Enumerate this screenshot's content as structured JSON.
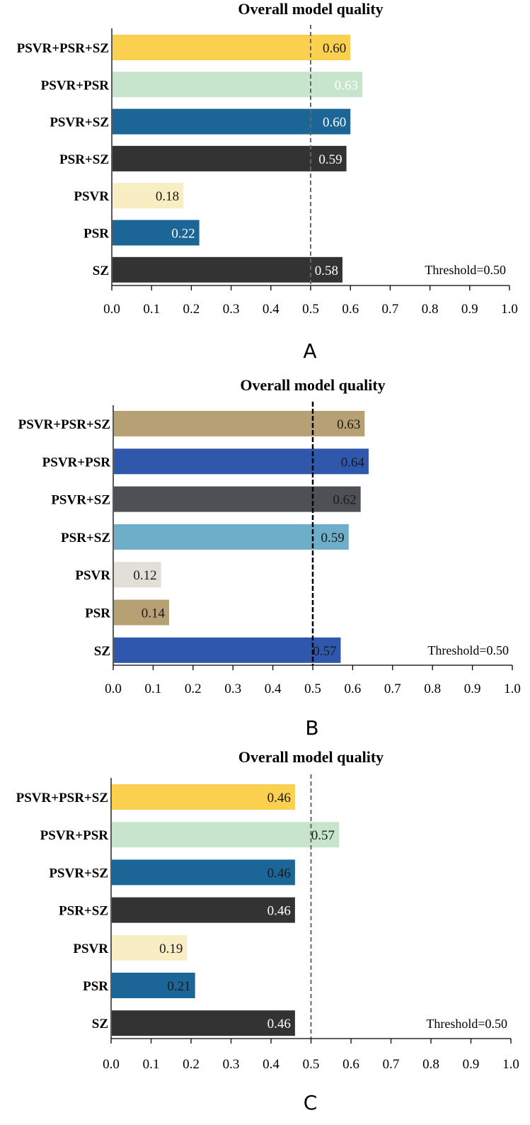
{
  "chart_data": [
    {
      "type": "bar",
      "orientation": "horizontal",
      "panel_label": "A",
      "title": "Overall model quality",
      "categories": [
        "PSVR+PSR+SZ",
        "PSVR+PSR",
        "PSVR+SZ",
        "PSR+SZ",
        "PSVR",
        "PSR",
        "SZ"
      ],
      "values": [
        0.6,
        0.63,
        0.6,
        0.59,
        0.18,
        0.22,
        0.58
      ],
      "value_labels": [
        "0.60",
        "0.63",
        "0.60",
        "0.59",
        "0.18",
        "0.22",
        "0.58"
      ],
      "colors": [
        "#FBD04E",
        "#C7E5CC",
        "#1C6597",
        "#333333",
        "#F8EDC3",
        "#1C6597",
        "#333333"
      ],
      "label_colors": [
        "#1a1a1a",
        "#ffffff",
        "#ffffff",
        "#ffffff",
        "#1a1a1a",
        "#ffffff",
        "#ffffff"
      ],
      "xlim": [
        0.0,
        1.0
      ],
      "xticks": [
        "0.0",
        "0.1",
        "0.2",
        "0.3",
        "0.4",
        "0.5",
        "0.6",
        "0.7",
        "0.8",
        "0.9",
        "1.0"
      ],
      "threshold": 0.5,
      "threshold_color": "#666666",
      "threshold_label": "Threshold=0.50",
      "xlabel": "",
      "ylabel": ""
    },
    {
      "type": "bar",
      "orientation": "horizontal",
      "panel_label": "B",
      "title": "Overall model quality",
      "categories": [
        "PSVR+PSR+SZ",
        "PSVR+PSR",
        "PSVR+SZ",
        "PSR+SZ",
        "PSVR",
        "PSR",
        "SZ"
      ],
      "values": [
        0.63,
        0.64,
        0.62,
        0.59,
        0.12,
        0.14,
        0.57
      ],
      "value_labels": [
        "0.63",
        "0.64",
        "0.62",
        "0.59",
        "0.12",
        "0.14",
        "0.57"
      ],
      "colors": [
        "#B8A075",
        "#2F58AC",
        "#4D5054",
        "#6EAEC9",
        "#E2DFD8",
        "#B8A075",
        "#2F58AC"
      ],
      "label_colors": [
        "#1a1a1a",
        "#1a1a1a",
        "#1a1a1a",
        "#1a1a1a",
        "#1a1a1a",
        "#1a1a1a",
        "#1a1a1a"
      ],
      "xlim": [
        0.0,
        1.0
      ],
      "xticks": [
        "0.0",
        "0.1",
        "0.2",
        "0.3",
        "0.4",
        "0.5",
        "0.6",
        "0.7",
        "0.8",
        "0.9",
        "1.0"
      ],
      "threshold": 0.5,
      "threshold_color": "#000000",
      "threshold_label": "Threshold=0.50",
      "xlabel": "",
      "ylabel": ""
    },
    {
      "type": "bar",
      "orientation": "horizontal",
      "panel_label": "C",
      "title": "Overall model quality",
      "categories": [
        "PSVR+PSR+SZ",
        "PSVR+PSR",
        "PSVR+SZ",
        "PSR+SZ",
        "PSVR",
        "PSR",
        "SZ"
      ],
      "values": [
        0.46,
        0.57,
        0.46,
        0.46,
        0.19,
        0.21,
        0.46
      ],
      "value_labels": [
        "0.46",
        "0.57",
        "0.46",
        "0.46",
        "0.19",
        "0.21",
        "0.46"
      ],
      "colors": [
        "#FBD04E",
        "#C7E5CC",
        "#1C6597",
        "#333333",
        "#F8EDC3",
        "#1C6597",
        "#333333"
      ],
      "label_colors": [
        "#1a1a1a",
        "#1a1a1a",
        "#1a1a1a",
        "#ffffff",
        "#1a1a1a",
        "#1a1a1a",
        "#ffffff"
      ],
      "xlim": [
        0.0,
        1.0
      ],
      "xticks": [
        "0.0",
        "0.1",
        "0.2",
        "0.3",
        "0.4",
        "0.5",
        "0.6",
        "0.7",
        "0.8",
        "0.9",
        "1.0"
      ],
      "threshold": 0.5,
      "threshold_color": "#666666",
      "threshold_label": "Threshold=0.50",
      "xlabel": "",
      "ylabel": ""
    }
  ]
}
